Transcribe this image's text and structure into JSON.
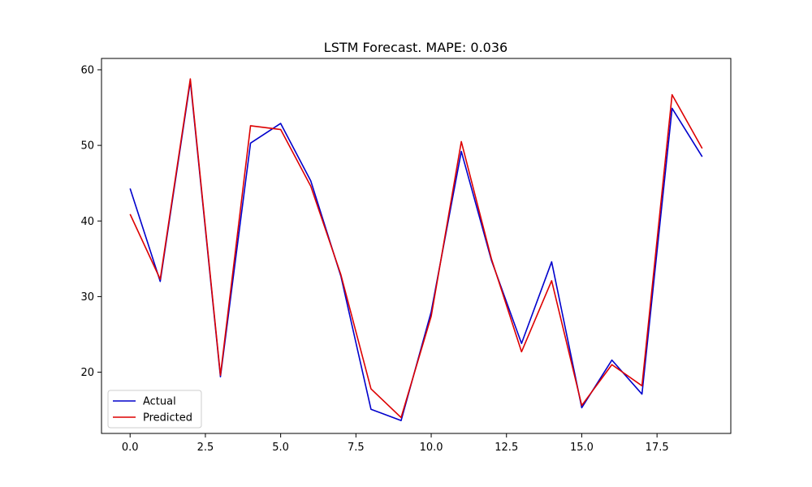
{
  "chart_data": {
    "type": "line",
    "title": "LSTM Forecast. MAPE: 0.036",
    "xlabel": "",
    "ylabel": "",
    "x": [
      0,
      1,
      2,
      3,
      4,
      5,
      6,
      7,
      8,
      9,
      10,
      11,
      12,
      13,
      14,
      15,
      16,
      17,
      18,
      19
    ],
    "xlim": [
      -0.95,
      19.95
    ],
    "ylim": [
      11.9,
      61.5
    ],
    "xticks": [
      0.0,
      2.5,
      5.0,
      7.5,
      10.0,
      12.5,
      15.0,
      17.5
    ],
    "xtick_labels": [
      "0.0",
      "2.5",
      "5.0",
      "7.5",
      "10.0",
      "12.5",
      "15.0",
      "17.5"
    ],
    "yticks": [
      20,
      30,
      40,
      50,
      60
    ],
    "ytick_labels": [
      "20",
      "30",
      "40",
      "50",
      "60"
    ],
    "grid": false,
    "legend_position": "lower-left",
    "series": [
      {
        "name": "Actual",
        "color": "#0000cc",
        "values": [
          44.3,
          32.0,
          58.5,
          19.4,
          50.3,
          52.9,
          45.3,
          32.7,
          15.1,
          13.6,
          28.0,
          49.2,
          34.8,
          23.8,
          34.6,
          15.3,
          21.6,
          17.1,
          54.9,
          48.5
        ]
      },
      {
        "name": "Predicted",
        "color": "#dd0000",
        "values": [
          40.9,
          32.3,
          58.8,
          19.6,
          52.6,
          52.1,
          44.6,
          32.9,
          17.8,
          14.0,
          27.4,
          50.5,
          35.0,
          22.7,
          32.1,
          15.6,
          21.0,
          18.2,
          56.7,
          49.6
        ]
      }
    ]
  }
}
